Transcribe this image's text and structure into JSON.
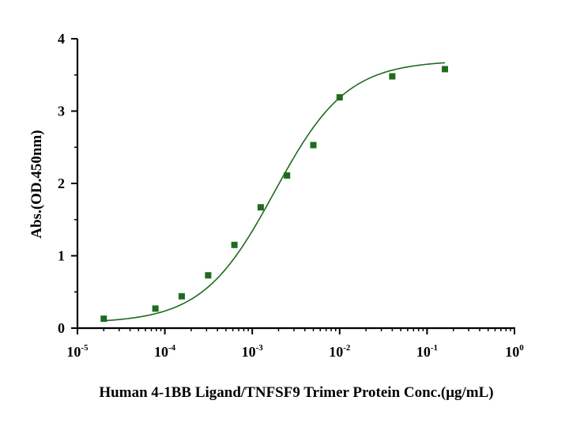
{
  "chart_data": {
    "type": "scatter",
    "title": "",
    "xlabel": "Human 4-1BB Ligand/TNFSF9 Trimer Protein Conc.(μg/mL)",
    "ylabel": "Abs.(OD.450nm)",
    "x_scale": "log",
    "xlim": [
      1e-05,
      1
    ],
    "ylim": [
      0,
      4
    ],
    "x_ticks": [
      {
        "base": "10",
        "exp": "-5"
      },
      {
        "base": "10",
        "exp": "-4"
      },
      {
        "base": "10",
        "exp": "-3"
      },
      {
        "base": "10",
        "exp": "-2"
      },
      {
        "base": "10",
        "exp": "-1"
      },
      {
        "base": "10",
        "exp": "0"
      }
    ],
    "y_ticks": [
      "0",
      "1",
      "2",
      "3",
      "4"
    ],
    "grid": false,
    "legend": "none",
    "color": "#1f6b1f",
    "series": [
      {
        "marker": "square",
        "fit": "sigmoidal curve",
        "x": [
          2e-05,
          7.8e-05,
          0.000156,
          0.000313,
          0.000625,
          0.00125,
          0.0025,
          0.005,
          0.01,
          0.04,
          0.16
        ],
        "y": [
          0.13,
          0.27,
          0.44,
          0.73,
          1.15,
          1.67,
          2.11,
          2.53,
          3.19,
          3.48,
          3.58
        ]
      }
    ],
    "fit_params": {
      "bottom": 0.07,
      "top": 3.7,
      "ec50": 0.0018,
      "hill": 1.05
    }
  }
}
